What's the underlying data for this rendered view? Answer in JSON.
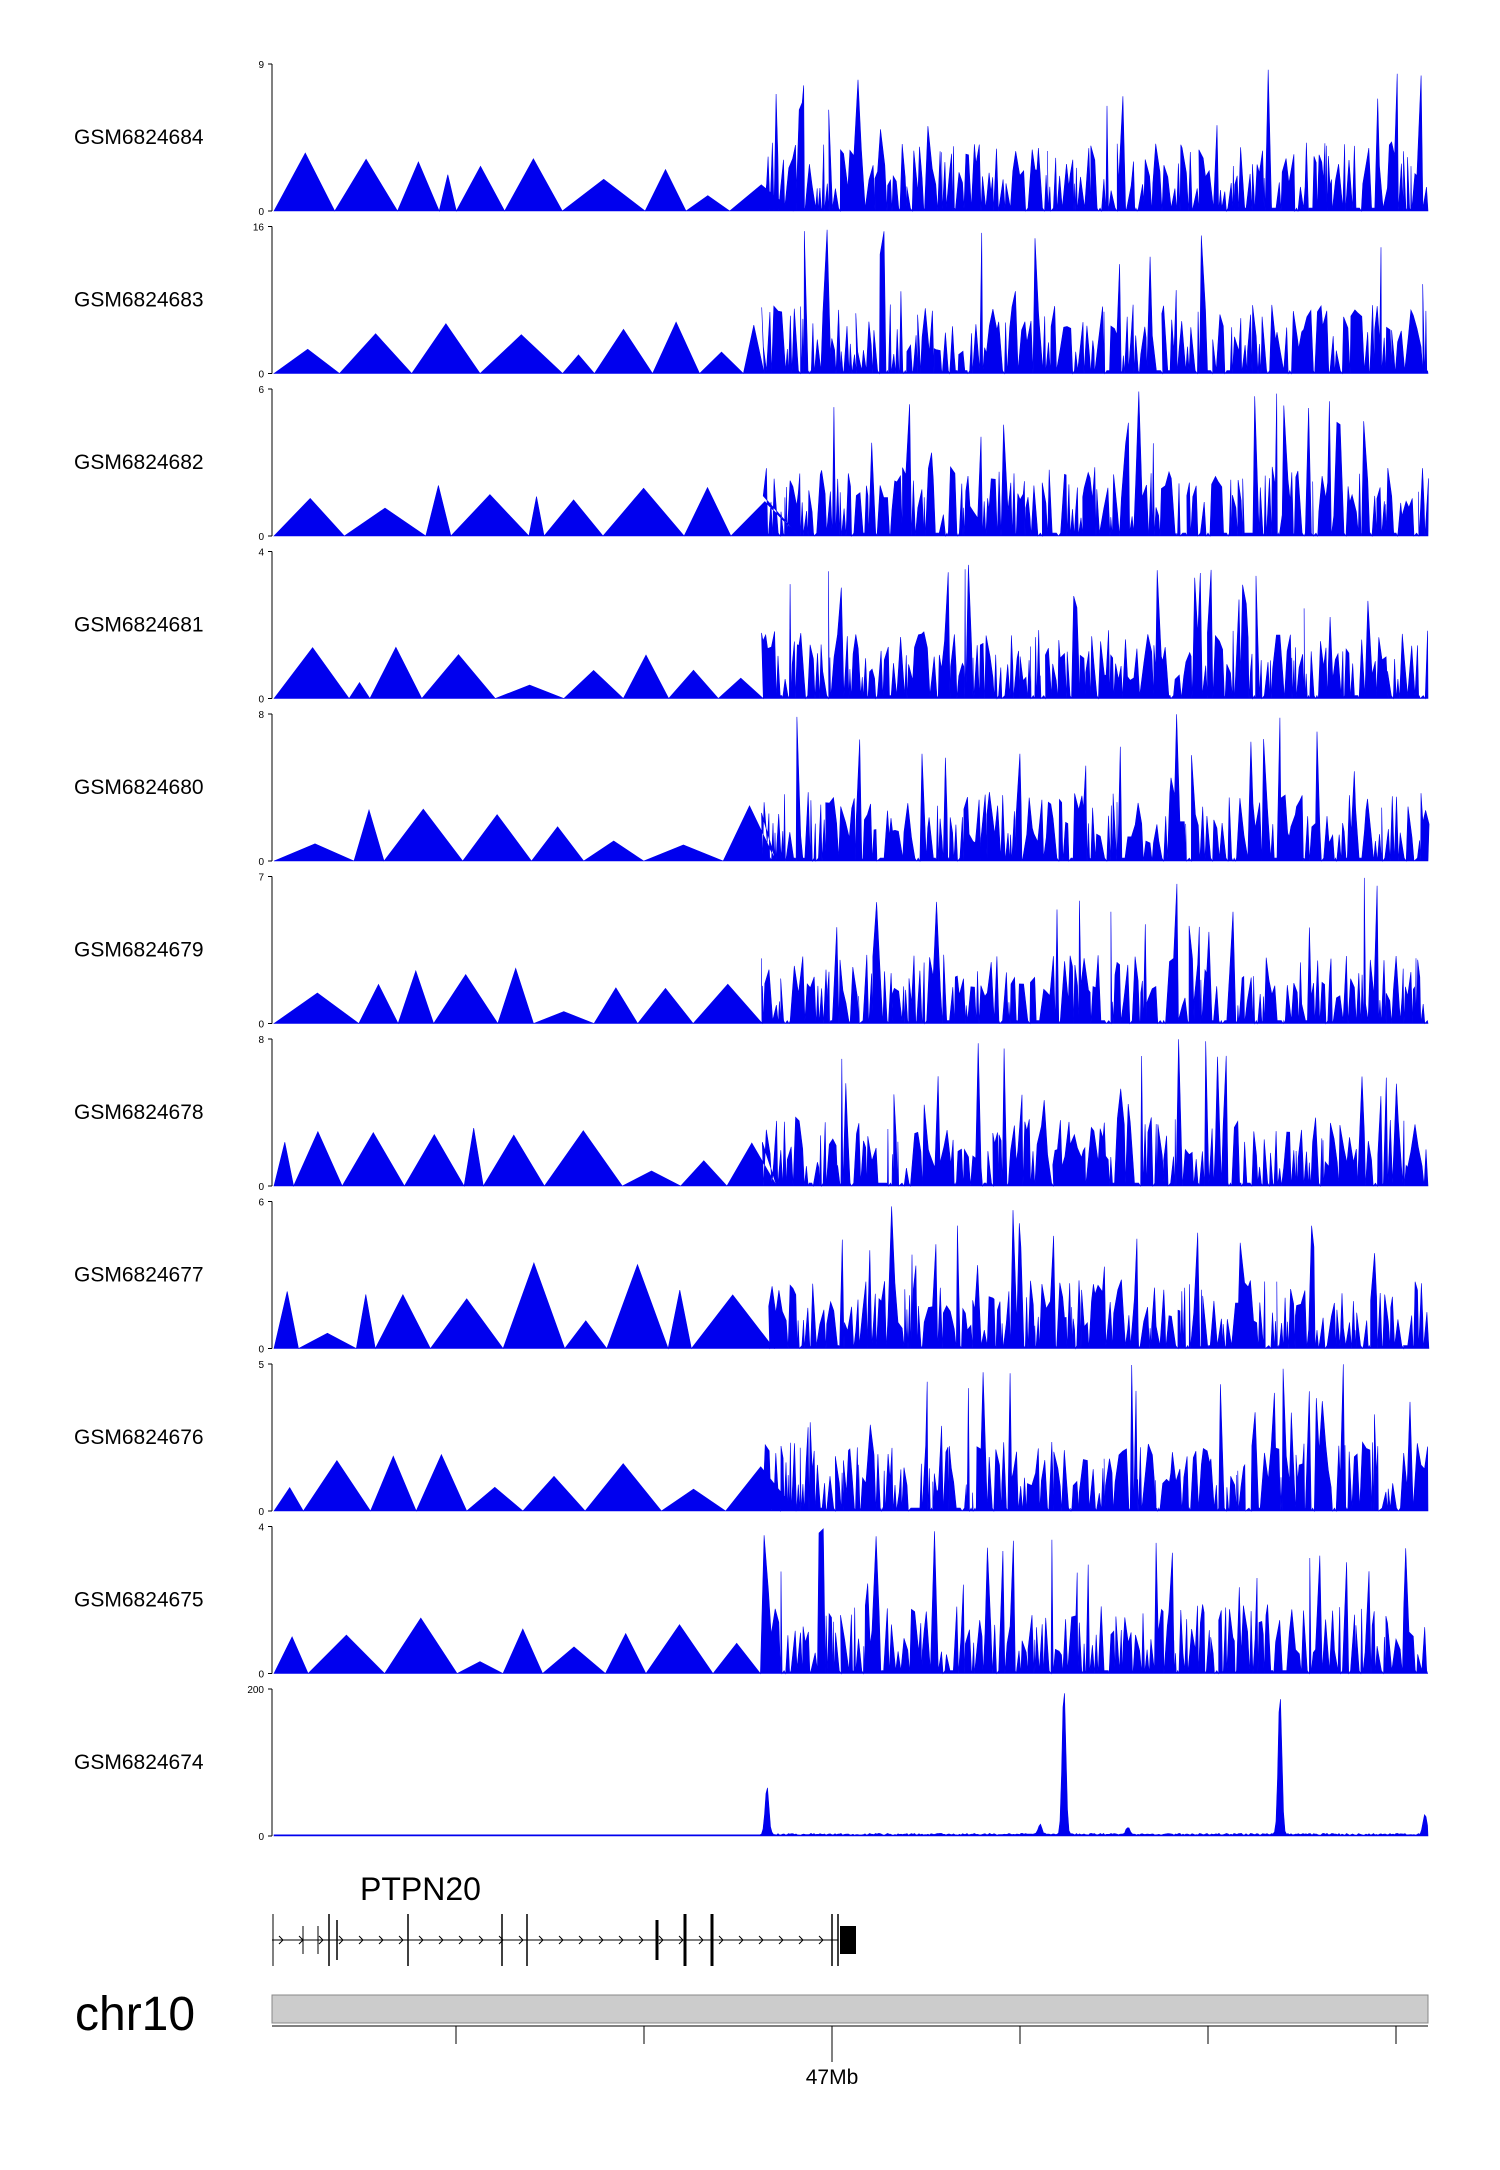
{
  "chart_data": {
    "type": "area",
    "colors": {
      "signal": "#0000ee",
      "ideogram": "#cccccc"
    },
    "series": [
      {
        "name": "GSM6824684",
        "ylim": [
          0,
          9
        ]
      },
      {
        "name": "GSM6824683",
        "ylim": [
          0,
          16
        ]
      },
      {
        "name": "GSM6824682",
        "ylim": [
          0,
          6
        ]
      },
      {
        "name": "GSM6824681",
        "ylim": [
          0,
          4
        ]
      },
      {
        "name": "GSM6824680",
        "ylim": [
          0,
          8
        ]
      },
      {
        "name": "GSM6824679",
        "ylim": [
          0,
          7
        ]
      },
      {
        "name": "GSM6824678",
        "ylim": [
          0,
          8
        ]
      },
      {
        "name": "GSM6824677",
        "ylim": [
          0,
          6
        ]
      },
      {
        "name": "GSM6824676",
        "ylim": [
          0,
          5
        ]
      },
      {
        "name": "GSM6824675",
        "ylim": [
          0,
          4
        ]
      },
      {
        "name": "GSM6824674",
        "ylim": [
          0,
          200
        ]
      }
    ],
    "gene": {
      "name": "PTPN20"
    },
    "chromosome": "chr10",
    "x_tick_label": "47Mb"
  }
}
